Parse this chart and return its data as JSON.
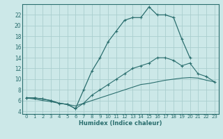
{
  "xlabel": "Humidex (Indice chaleur)",
  "bg_color": "#cce8e8",
  "grid_color": "#aacece",
  "line_color": "#2a6e6e",
  "xlim": [
    -0.5,
    23.5
  ],
  "ylim": [
    3.5,
    24.0
  ],
  "yticks": [
    4,
    6,
    8,
    10,
    12,
    14,
    16,
    18,
    20,
    22
  ],
  "xticks": [
    0,
    1,
    2,
    3,
    4,
    5,
    6,
    7,
    8,
    9,
    10,
    11,
    12,
    13,
    14,
    15,
    16,
    17,
    18,
    19,
    20,
    21,
    22,
    23
  ],
  "series1_x": [
    0,
    1,
    2,
    3,
    4,
    5,
    6,
    7,
    8,
    9,
    10,
    11,
    12,
    13,
    14,
    15,
    16,
    17,
    18,
    19,
    20,
    21,
    22,
    23
  ],
  "series1_y": [
    6.5,
    6.5,
    6.3,
    6.0,
    5.5,
    5.3,
    4.5,
    8.0,
    11.5,
    14.0,
    17.0,
    19.0,
    21.0,
    21.5,
    21.5,
    23.5,
    22.0,
    22.0,
    21.5,
    17.5,
    14.0,
    null,
    null,
    null
  ],
  "series2_x": [
    0,
    1,
    2,
    3,
    4,
    5,
    6,
    7,
    8,
    9,
    10,
    11,
    12,
    13,
    14,
    15,
    16,
    17,
    18,
    19,
    20,
    21,
    22,
    23
  ],
  "series2_y": [
    6.5,
    6.5,
    6.3,
    6.0,
    5.5,
    5.3,
    4.5,
    5.5,
    7.0,
    8.0,
    9.0,
    10.0,
    11.0,
    12.0,
    12.5,
    13.0,
    14.0,
    14.0,
    13.5,
    12.5,
    13.0,
    11.0,
    10.5,
    9.5
  ],
  "series3_x": [
    0,
    1,
    2,
    3,
    4,
    5,
    6,
    7,
    8,
    9,
    10,
    11,
    12,
    13,
    14,
    15,
    16,
    17,
    18,
    19,
    20,
    21,
    22,
    23
  ],
  "series3_y": [
    6.5,
    6.3,
    6.0,
    5.8,
    5.5,
    5.3,
    5.0,
    5.5,
    6.0,
    6.5,
    7.0,
    7.5,
    8.0,
    8.5,
    9.0,
    9.2,
    9.5,
    9.8,
    10.0,
    10.2,
    10.3,
    10.2,
    9.8,
    9.5
  ]
}
